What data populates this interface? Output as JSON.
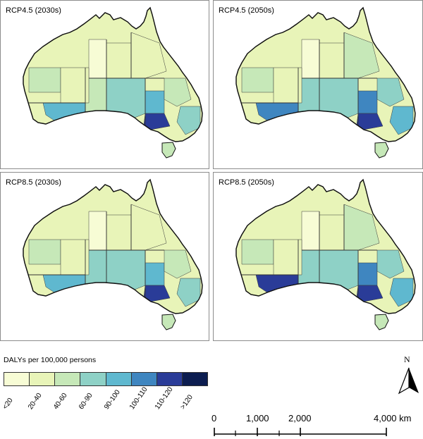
{
  "panels": [
    {
      "title": "RCP4.5 (2030s)",
      "variant": 0
    },
    {
      "title": "RCP4.5 (2050s)",
      "variant": 1
    },
    {
      "title": "RCP8.5 (2030s)",
      "variant": 2
    },
    {
      "title": "RCP8.5 (2050s)",
      "variant": 3
    }
  ],
  "legend": {
    "title": "DALYs per 100,000 persons",
    "classes": [
      {
        "label": "<20",
        "color": "#f7fcd5"
      },
      {
        "label": "20-40",
        "color": "#e8f4b8"
      },
      {
        "label": "40-60",
        "color": "#c6e8b8"
      },
      {
        "label": "60-90",
        "color": "#8ed1c6"
      },
      {
        "label": "90-100",
        "color": "#5fb8cf"
      },
      {
        "label": "100-110",
        "color": "#3f86c0"
      },
      {
        "label": "110-120",
        "color": "#2a3c98"
      },
      {
        "label": ">120",
        "color": "#0c1d50"
      }
    ]
  },
  "north_arrow": {
    "label": "N",
    "icon": "north-arrow-icon"
  },
  "scale_bar": {
    "ticks": [
      "0",
      "1,000",
      "2,000",
      "4,000 km"
    ]
  }
}
